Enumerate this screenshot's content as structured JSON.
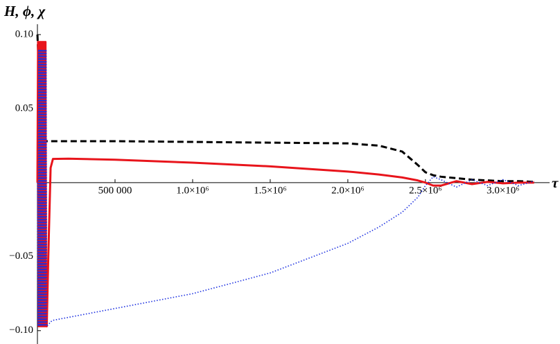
{
  "chart_data": {
    "type": "line",
    "y_label": "H, ϕ, χ",
    "x_label": "τ",
    "x": [
      0,
      4000,
      8000,
      12000,
      16000,
      20000,
      24000,
      28000,
      32000,
      36000,
      40000,
      44000,
      48000,
      52000,
      56000,
      60000,
      70000,
      85000,
      100000,
      200000,
      500000,
      1000000,
      1500000,
      2000000,
      2200000,
      2350000,
      2450000,
      2500000,
      2550000,
      2600000,
      2700000,
      2800000,
      2900000,
      3000000,
      3100000,
      3200000
    ],
    "series": [
      {
        "color": "#000000",
        "style": "dashed",
        "values": [
          0.1,
          0.09,
          0.07,
          0.05,
          0.035,
          0.03,
          0.029,
          0.028,
          0.028,
          0.028,
          0.028,
          0.028,
          0.028,
          0.028,
          0.028,
          0.028,
          0.028,
          0.028,
          0.028,
          0.028,
          0.028,
          0.0275,
          0.027,
          0.0265,
          0.025,
          0.021,
          0.012,
          0.007,
          0.005,
          0.004,
          0.003,
          0.002,
          0.0015,
          0.001,
          0.001,
          0.0005
        ]
      },
      {
        "color": "#e8141b",
        "style": "solid",
        "values": [
          0,
          0.095,
          -0.097,
          0.095,
          -0.097,
          0.095,
          -0.097,
          0.095,
          -0.097,
          0.095,
          -0.097,
          0.095,
          -0.097,
          0.095,
          -0.097,
          -0.097,
          -0.05,
          0.01,
          0.016,
          0.0162,
          0.0155,
          0.0135,
          0.011,
          0.0075,
          0.0055,
          0.0035,
          0.0015,
          0,
          -0.002,
          -0.002,
          0.001,
          -0.001,
          0.0005,
          -0.0005,
          0,
          0
        ]
      },
      {
        "color": "#1a2ee0",
        "style": "dotted",
        "values": [
          0,
          -0.097,
          0.09,
          -0.097,
          0.09,
          -0.097,
          0.09,
          -0.097,
          0.09,
          -0.097,
          0.09,
          -0.097,
          0.09,
          -0.097,
          0.09,
          -0.097,
          -0.096,
          -0.094,
          -0.093,
          -0.091,
          -0.085,
          -0.075,
          -0.061,
          -0.041,
          -0.03,
          -0.02,
          -0.01,
          -0.002,
          0.004,
          0.002,
          -0.003,
          0.002,
          -0.002,
          0.002,
          -0.002,
          0.001
        ]
      }
    ],
    "xlim": [
      0,
      3300000
    ],
    "ylim": [
      -0.109,
      0.107
    ],
    "xticks": [
      {
        "value": 500000,
        "label": "500 000"
      },
      {
        "value": 1000000,
        "label": "1.0×10⁶"
      },
      {
        "value": 1500000,
        "label": "1.5×10⁶"
      },
      {
        "value": 2000000,
        "label": "2.0×10⁶"
      },
      {
        "value": 2500000,
        "label": "2.5×10⁶"
      },
      {
        "value": 3000000,
        "label": "3.0×10⁶"
      }
    ],
    "yticks": [
      {
        "value": -0.1,
        "label": "−0.10"
      },
      {
        "value": -0.05,
        "label": "−0.05"
      },
      {
        "value": 0.05,
        "label": "0.05"
      },
      {
        "value": 0.1,
        "label": "0.10"
      }
    ],
    "grid": false
  }
}
